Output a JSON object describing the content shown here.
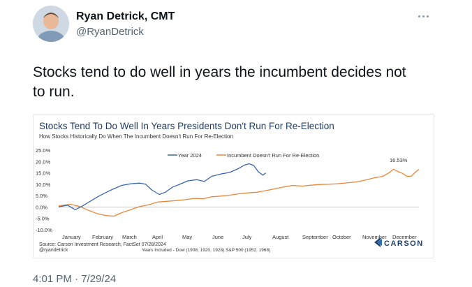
{
  "author": {
    "name": "Ryan Detrick, CMT",
    "handle": "@RyanDetrick"
  },
  "tweet": {
    "text_line1": "Stocks tend to do well in years the incumbent decides not",
    "text_line2": "to run.",
    "timestamp": "4:01 PM · 7/29/24"
  },
  "icons": {
    "more": "more-dots-icon",
    "brand": "carson-logo-icon"
  },
  "colors": {
    "blue": "#3a67b0",
    "orange": "#e8873a",
    "carson": "#1b3f6a"
  },
  "chart_data": {
    "type": "line",
    "title": "Stocks Tend To Do Well In Years Presidents Don't Run For Re-Election",
    "subtitle": "How Stocks Historically Do When The Incumbent Doesn't Run For Re-Election",
    "ylim": [
      -10,
      25
    ],
    "yticks": [
      "25.0%",
      "20.0%",
      "15.0%",
      "10.0%",
      "5.0%",
      "0.0%",
      "-5.0%",
      "-10.0%"
    ],
    "ytick_values": [
      25,
      20,
      15,
      10,
      5,
      0,
      -5,
      -10
    ],
    "months": [
      "January",
      "February",
      "March",
      "April",
      "May",
      "June",
      "July",
      "August",
      "September",
      "October",
      "November",
      "December"
    ],
    "x_unit": "months from start of year (0 = Jan 1, 12 = Dec 31)",
    "grid": false,
    "legend_position": "top-center",
    "annotation": "16.53%",
    "series": [
      {
        "name": "Year 2024",
        "color": "#3a67b0",
        "points": [
          [
            0,
            0
          ],
          [
            0.3,
            0.8
          ],
          [
            0.55,
            -1.2
          ],
          [
            0.8,
            0.5
          ],
          [
            1.05,
            2.5
          ],
          [
            1.3,
            4.5
          ],
          [
            1.55,
            6.2
          ],
          [
            1.8,
            7.8
          ],
          [
            2.1,
            9.5
          ],
          [
            2.4,
            10.2
          ],
          [
            2.7,
            10.5
          ],
          [
            2.9,
            10.0
          ],
          [
            3.1,
            7.5
          ],
          [
            3.35,
            5.5
          ],
          [
            3.55,
            6.5
          ],
          [
            3.8,
            8.8
          ],
          [
            4.0,
            9.8
          ],
          [
            4.3,
            11.5
          ],
          [
            4.6,
            12.0
          ],
          [
            4.85,
            11.2
          ],
          [
            5.1,
            13.5
          ],
          [
            5.4,
            14.5
          ],
          [
            5.7,
            15.2
          ],
          [
            6.0,
            17.0
          ],
          [
            6.2,
            18.5
          ],
          [
            6.35,
            19.0
          ],
          [
            6.5,
            18.2
          ],
          [
            6.65,
            15.5
          ],
          [
            6.8,
            14.0
          ],
          [
            6.9,
            15.0
          ]
        ]
      },
      {
        "name": "Incumbent Doesn't Run For Re-Election",
        "color": "#e8873a",
        "points": [
          [
            0,
            0.5
          ],
          [
            0.4,
            1.2
          ],
          [
            0.7,
            0.2
          ],
          [
            1.0,
            -1.5
          ],
          [
            1.3,
            -3.0
          ],
          [
            1.6,
            -3.8
          ],
          [
            1.85,
            -4.0
          ],
          [
            2.1,
            -2.5
          ],
          [
            2.4,
            -1.2
          ],
          [
            2.7,
            0.2
          ],
          [
            3.0,
            1.0
          ],
          [
            3.3,
            2.2
          ],
          [
            3.6,
            2.5
          ],
          [
            3.9,
            2.8
          ],
          [
            4.2,
            3.2
          ],
          [
            4.5,
            3.8
          ],
          [
            4.8,
            3.6
          ],
          [
            5.1,
            4.5
          ],
          [
            5.4,
            4.8
          ],
          [
            5.7,
            5.2
          ],
          [
            6.0,
            5.8
          ],
          [
            6.3,
            6.2
          ],
          [
            6.6,
            6.5
          ],
          [
            6.9,
            7.2
          ],
          [
            7.2,
            8.0
          ],
          [
            7.5,
            8.8
          ],
          [
            7.8,
            9.5
          ],
          [
            8.1,
            9.2
          ],
          [
            8.4,
            9.6
          ],
          [
            8.7,
            9.9
          ],
          [
            9.0,
            10.0
          ],
          [
            9.3,
            10.2
          ],
          [
            9.6,
            10.6
          ],
          [
            9.9,
            11.0
          ],
          [
            10.2,
            11.8
          ],
          [
            10.5,
            12.8
          ],
          [
            10.8,
            13.5
          ],
          [
            11.0,
            15.0
          ],
          [
            11.15,
            16.6
          ],
          [
            11.3,
            15.6
          ],
          [
            11.45,
            14.8
          ],
          [
            11.6,
            13.5
          ],
          [
            11.75,
            13.6
          ],
          [
            11.9,
            15.5
          ],
          [
            12.0,
            16.53
          ]
        ]
      }
    ],
    "source": "Source: Carson Investment Research, FactSet 07/28/2024",
    "credit": "@ryandetrick",
    "footnote": "Years Included - Dow (1908, 1920, 1928) S&P 500 (1952, 1968)",
    "brand": "CARSON"
  }
}
